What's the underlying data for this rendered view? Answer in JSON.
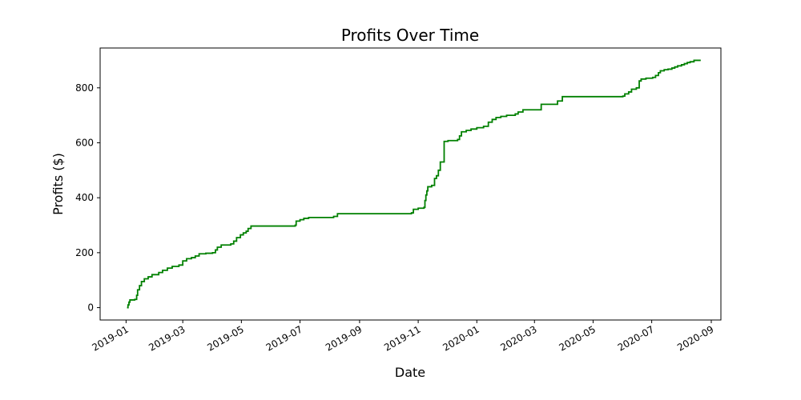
{
  "chart_data": {
    "type": "line",
    "title": "Profits Over Time",
    "xlabel": "Date",
    "ylabel": "Profits ($)",
    "x_ticks": [
      "2019-01",
      "2019-03",
      "2019-05",
      "2019-07",
      "2019-09",
      "2019-11",
      "2020-01",
      "2020-03",
      "2020-05",
      "2020-07",
      "2020-09"
    ],
    "y_ticks": [
      0,
      200,
      400,
      600,
      800
    ],
    "xlim": [
      "2018-12-05",
      "2020-09-11"
    ],
    "ylim": [
      -45,
      945
    ],
    "grid": false,
    "line_style": "steps-post",
    "series": [
      {
        "color": "#008000",
        "points": [
          [
            "2019-01-02",
            0
          ],
          [
            "2019-01-03",
            10
          ],
          [
            "2019-01-04",
            20
          ],
          [
            "2019-01-05",
            28
          ],
          [
            "2019-01-10",
            30
          ],
          [
            "2019-01-12",
            45
          ],
          [
            "2019-01-13",
            65
          ],
          [
            "2019-01-15",
            80
          ],
          [
            "2019-01-17",
            95
          ],
          [
            "2019-01-20",
            105
          ],
          [
            "2019-01-24",
            112
          ],
          [
            "2019-01-28",
            120
          ],
          [
            "2019-02-04",
            128
          ],
          [
            "2019-02-08",
            136
          ],
          [
            "2019-02-13",
            144
          ],
          [
            "2019-02-18",
            150
          ],
          [
            "2019-02-25",
            155
          ],
          [
            "2019-03-01",
            170
          ],
          [
            "2019-03-05",
            178
          ],
          [
            "2019-03-10",
            182
          ],
          [
            "2019-03-14",
            188
          ],
          [
            "2019-03-18",
            196
          ],
          [
            "2019-03-25",
            198
          ],
          [
            "2019-04-01",
            200
          ],
          [
            "2019-04-04",
            210
          ],
          [
            "2019-04-06",
            220
          ],
          [
            "2019-04-10",
            228
          ],
          [
            "2019-04-20",
            232
          ],
          [
            "2019-04-23",
            242
          ],
          [
            "2019-04-26",
            255
          ],
          [
            "2019-04-30",
            265
          ],
          [
            "2019-05-03",
            272
          ],
          [
            "2019-05-06",
            278
          ],
          [
            "2019-05-08",
            288
          ],
          [
            "2019-05-11",
            297
          ],
          [
            "2019-06-26",
            300
          ],
          [
            "2019-06-27",
            315
          ],
          [
            "2019-07-01",
            320
          ],
          [
            "2019-07-05",
            325
          ],
          [
            "2019-07-10",
            328
          ],
          [
            "2019-08-05",
            332
          ],
          [
            "2019-08-09",
            342
          ],
          [
            "2019-10-25",
            345
          ],
          [
            "2019-10-27",
            358
          ],
          [
            "2019-11-01",
            362
          ],
          [
            "2019-11-07",
            365
          ],
          [
            "2019-11-08",
            390
          ],
          [
            "2019-11-09",
            410
          ],
          [
            "2019-11-10",
            425
          ],
          [
            "2019-11-11",
            440
          ],
          [
            "2019-11-15",
            445
          ],
          [
            "2019-11-18",
            470
          ],
          [
            "2019-11-20",
            480
          ],
          [
            "2019-11-22",
            500
          ],
          [
            "2019-11-24",
            530
          ],
          [
            "2019-11-28",
            605
          ],
          [
            "2019-12-02",
            608
          ],
          [
            "2019-12-12",
            612
          ],
          [
            "2019-12-14",
            625
          ],
          [
            "2019-12-16",
            640
          ],
          [
            "2019-12-21",
            645
          ],
          [
            "2019-12-26",
            650
          ],
          [
            "2020-01-01",
            655
          ],
          [
            "2020-01-08",
            660
          ],
          [
            "2020-01-13",
            675
          ],
          [
            "2020-01-17",
            685
          ],
          [
            "2020-01-21",
            692
          ],
          [
            "2020-01-26",
            696
          ],
          [
            "2020-02-01",
            700
          ],
          [
            "2020-02-10",
            705
          ],
          [
            "2020-02-13",
            712
          ],
          [
            "2020-02-18",
            720
          ],
          [
            "2020-03-08",
            740
          ],
          [
            "2020-03-25",
            752
          ],
          [
            "2020-03-30",
            768
          ],
          [
            "2020-06-01",
            770
          ],
          [
            "2020-06-03",
            778
          ],
          [
            "2020-06-07",
            785
          ],
          [
            "2020-06-10",
            795
          ],
          [
            "2020-06-15",
            800
          ],
          [
            "2020-06-18",
            825
          ],
          [
            "2020-06-20",
            832
          ],
          [
            "2020-06-25",
            835
          ],
          [
            "2020-07-02",
            838
          ],
          [
            "2020-07-05",
            845
          ],
          [
            "2020-07-08",
            855
          ],
          [
            "2020-07-10",
            862
          ],
          [
            "2020-07-14",
            866
          ],
          [
            "2020-07-18",
            868
          ],
          [
            "2020-07-22",
            872
          ],
          [
            "2020-07-25",
            876
          ],
          [
            "2020-07-28",
            880
          ],
          [
            "2020-08-01",
            884
          ],
          [
            "2020-08-04",
            888
          ],
          [
            "2020-08-07",
            892
          ],
          [
            "2020-08-10",
            895
          ],
          [
            "2020-08-14",
            900
          ],
          [
            "2020-08-21",
            900
          ]
        ]
      }
    ]
  }
}
